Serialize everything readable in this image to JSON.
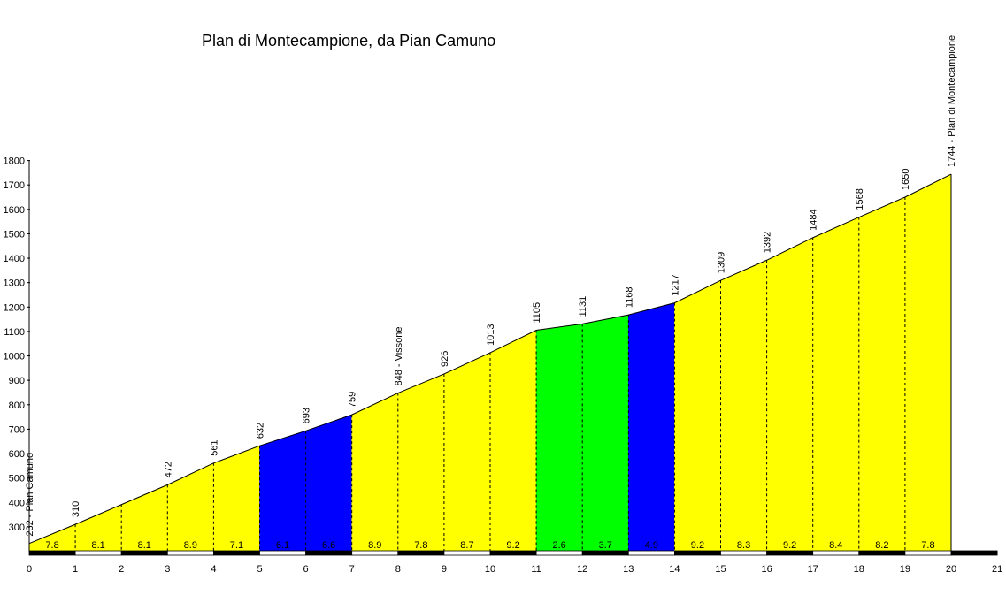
{
  "chart_data": {
    "type": "area",
    "title": "Plan di Montecampione, da Pian Camuno",
    "xlabel": "",
    "ylabel": "",
    "xlim": [
      0,
      21
    ],
    "ylim": [
      200,
      1800
    ],
    "x_ticks": [
      0,
      1,
      2,
      3,
      4,
      5,
      6,
      7,
      8,
      9,
      10,
      11,
      12,
      13,
      14,
      15,
      16,
      17,
      18,
      19,
      20,
      21
    ],
    "y_ticks": [
      300,
      400,
      500,
      600,
      700,
      800,
      900,
      1000,
      1100,
      1200,
      1300,
      1400,
      1500,
      1600,
      1700,
      1800
    ],
    "x": [
      0,
      1,
      2,
      3,
      4,
      5,
      6,
      7,
      8,
      9,
      10,
      11,
      12,
      13,
      14,
      15,
      16,
      17,
      18,
      19,
      20
    ],
    "elevation": [
      232,
      310,
      391,
      472,
      561,
      632,
      693,
      759,
      848,
      926,
      1013,
      1105,
      1131,
      1168,
      1217,
      1309,
      1392,
      1484,
      1568,
      1650,
      1744
    ],
    "point_labels": [
      "232 - Plan Camuno",
      "310",
      "",
      "472",
      "561",
      "632",
      "693",
      "759",
      "848 - Vissone",
      "926",
      "1013",
      "1105",
      "1131",
      "1168",
      "1217",
      "1309",
      "1392",
      "1484",
      "1568",
      "1650",
      "1744 - Plan di Montecampione"
    ],
    "segment_gradients": [
      "7.8",
      "8.1",
      "8.1",
      "8.9",
      "7.1",
      "6.1",
      "6.6",
      "8.9",
      "7.8",
      "8.7",
      "9.2",
      "2.6",
      "3.7",
      "4.9",
      "9.2",
      "8.3",
      "9.2",
      "8.4",
      "8.2",
      "7.8"
    ],
    "colors": {
      "steep": "#ffff00",
      "moderate": "#0000ff",
      "gentle": "#00ff00",
      "outline": "#000000"
    }
  }
}
